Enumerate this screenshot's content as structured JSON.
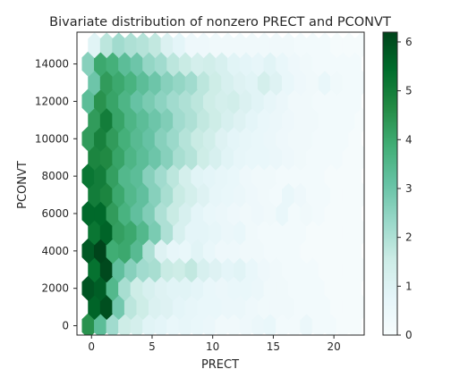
{
  "chart_data": {
    "type": "heatmap",
    "subtype": "hexbin",
    "title": "Bivariate distribution of nonzero PRECT and PCONVT",
    "xlabel": "PRECT",
    "ylabel": "PCONVT",
    "xlim": [
      -1.2,
      22.5
    ],
    "ylim": [
      -500,
      15700
    ],
    "xticks": [
      0,
      5,
      10,
      15,
      20
    ],
    "yticks": [
      0,
      2000,
      4000,
      6000,
      8000,
      10000,
      12000,
      14000
    ],
    "colorbar": {
      "ticks": [
        0,
        1,
        2,
        3,
        4,
        5,
        6
      ],
      "range": [
        0,
        6.2
      ],
      "colormap": "BuGn",
      "colors": [
        "#f7fcfd",
        "#e5f5f9",
        "#ccece6",
        "#99d8c9",
        "#66c2a4",
        "#41ae76",
        "#238b45",
        "#006d2c",
        "#00441b"
      ]
    },
    "grid": false,
    "hex_columns_x": [
      -0.25,
      0.75,
      1.75,
      2.75,
      3.75,
      4.75,
      5.75,
      6.75,
      7.75,
      8.75,
      9.75,
      10.75,
      11.75,
      12.75,
      13.75,
      14.75,
      15.75,
      16.75,
      17.75,
      18.75,
      19.75,
      20.75,
      21.75
    ],
    "hex_rows_y": [
      0,
      1000,
      2000,
      3000,
      4000,
      5000,
      6000,
      7000,
      8000,
      9000,
      10000,
      11000,
      12000,
      13000,
      14000,
      15000
    ],
    "hex_values": [
      [
        4.5,
        3.3,
        2.2,
        1.5,
        1.3,
        0.9,
        0.8,
        0.6,
        0.7,
        0.6,
        0.5,
        0.3,
        0.3,
        0.4,
        0.5,
        0.6,
        0.2,
        0.2,
        0.5,
        0.2,
        0.2,
        0.1,
        0.1
      ],
      [
        5.6,
        6.0,
        2.9,
        1.8,
        1.5,
        1.1,
        1.0,
        0.8,
        0.7,
        0.6,
        0.6,
        0.5,
        0.5,
        0.4,
        0.3,
        0.3,
        0.3,
        0.2,
        0.2,
        0.2,
        0.1,
        0.1,
        0.1
      ],
      [
        5.9,
        5.7,
        3.5,
        2.1,
        1.5,
        1.2,
        1.0,
        0.9,
        0.9,
        0.8,
        0.6,
        0.5,
        0.6,
        0.6,
        0.5,
        0.3,
        0.3,
        0.2,
        0.2,
        0.2,
        0.1,
        0.1,
        0.1
      ],
      [
        5.3,
        6.1,
        3.2,
        2.6,
        2.2,
        2.1,
        1.6,
        1.5,
        1.7,
        1.2,
        1.0,
        0.8,
        0.9,
        0.6,
        0.4,
        0.3,
        0.2,
        0.2,
        0.2,
        0.1,
        0.1,
        0.1,
        0.1
      ],
      [
        5.8,
        6.2,
        3.9,
        4.0,
        3.4,
        2.0,
        1.0,
        0.7,
        0.6,
        0.9,
        0.6,
        0.4,
        0.4,
        0.3,
        0.3,
        0.2,
        0.2,
        0.2,
        0.1,
        0.1,
        0.1,
        0.1,
        0.1
      ],
      [
        5.2,
        5.6,
        4.2,
        4.0,
        3.5,
        2.8,
        2.0,
        1.2,
        0.8,
        0.8,
        0.7,
        0.5,
        0.6,
        0.3,
        0.2,
        0.2,
        0.2,
        0.2,
        0.1,
        0.1,
        0.1,
        0.1,
        0.1
      ],
      [
        5.5,
        5.5,
        4.3,
        3.7,
        3.2,
        2.7,
        2.0,
        1.6,
        1.2,
        0.8,
        0.6,
        0.5,
        0.4,
        0.3,
        0.4,
        0.3,
        0.6,
        0.2,
        0.3,
        0.2,
        0.1,
        0.1,
        0.1
      ],
      [
        5.0,
        4.8,
        4.0,
        3.5,
        3.2,
        2.6,
        2.1,
        1.6,
        1.3,
        1.0,
        0.7,
        0.6,
        0.5,
        0.4,
        0.3,
        0.2,
        0.6,
        0.4,
        0.2,
        0.2,
        0.1,
        0.1,
        0.1
      ],
      [
        5.2,
        5.0,
        4.2,
        3.5,
        3.3,
        2.6,
        2.2,
        1.8,
        1.3,
        0.9,
        0.8,
        0.7,
        0.6,
        0.4,
        0.3,
        0.3,
        0.2,
        0.2,
        0.2,
        0.2,
        0.1,
        0.1,
        0.1
      ],
      [
        4.8,
        4.7,
        4.1,
        3.6,
        3.3,
        3.0,
        2.6,
        2.1,
        1.9,
        1.5,
        1.2,
        0.9,
        0.7,
        0.6,
        0.6,
        0.5,
        0.4,
        0.3,
        0.2,
        0.2,
        0.2,
        0.1,
        0.1
      ],
      [
        4.3,
        4.9,
        4.3,
        3.8,
        3.4,
        3.1,
        2.6,
        2.3,
        1.9,
        1.6,
        1.4,
        1.0,
        0.8,
        0.7,
        0.6,
        0.5,
        0.4,
        0.3,
        0.3,
        0.2,
        0.2,
        0.2,
        0.1
      ],
      [
        4.3,
        5.0,
        4.1,
        3.6,
        3.3,
        3.0,
        2.7,
        2.2,
        2.0,
        1.7,
        1.5,
        1.2,
        1.0,
        0.8,
        0.6,
        0.5,
        0.4,
        0.3,
        0.3,
        0.2,
        0.2,
        0.2,
        0.1
      ],
      [
        3.3,
        4.5,
        4.1,
        3.6,
        3.1,
        2.8,
        2.5,
        2.2,
        2.0,
        1.8,
        1.5,
        1.3,
        1.4,
        1.1,
        0.9,
        0.7,
        0.5,
        0.3,
        0.3,
        0.2,
        0.2,
        0.2,
        0.2
      ],
      [
        3.0,
        4.3,
        4.0,
        3.7,
        3.3,
        3.0,
        2.6,
        2.4,
        2.2,
        1.8,
        1.5,
        1.2,
        1.0,
        0.9,
        1.3,
        1.0,
        0.6,
        0.4,
        0.3,
        0.6,
        0.3,
        0.2,
        0.2
      ],
      [
        2.6,
        4.0,
        3.8,
        3.3,
        3.0,
        2.4,
        2.2,
        1.8,
        1.6,
        1.3,
        1.4,
        1.2,
        0.9,
        0.8,
        0.7,
        0.9,
        0.6,
        0.4,
        0.3,
        0.2,
        0.2,
        0.2,
        0.2
      ],
      [
        0.9,
        1.8,
        2.2,
        2.0,
        1.9,
        1.7,
        1.1,
        0.8,
        0.4,
        0.4,
        0.3,
        0.3,
        0.3,
        0.3,
        0.3,
        0.3,
        0.3,
        0.2,
        0.2,
        0.2,
        0.1,
        0.1,
        0.1
      ]
    ]
  }
}
